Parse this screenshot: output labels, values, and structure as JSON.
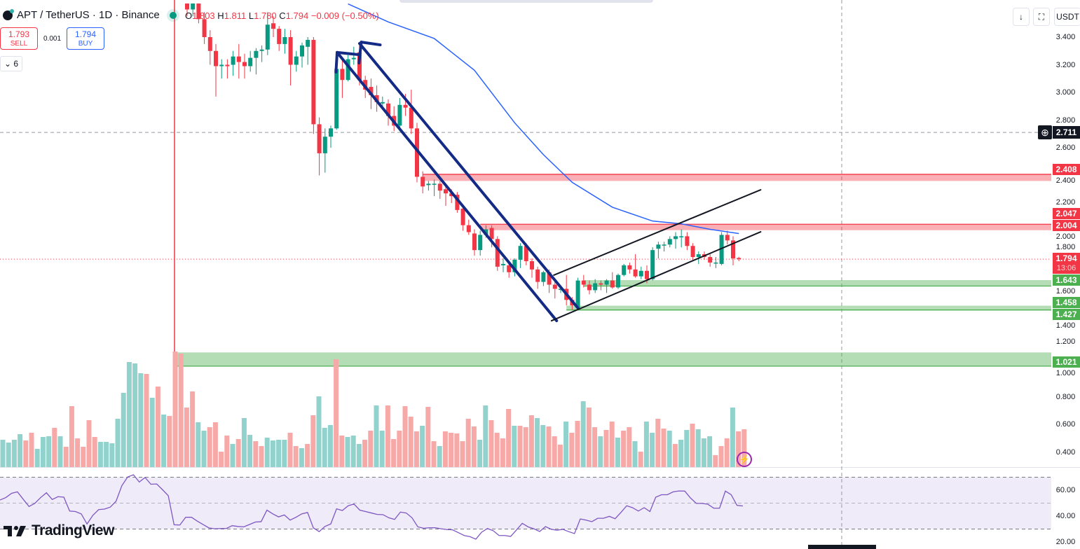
{
  "header": {
    "symbol": "APT",
    "title": "APT / TetherUS · 1D · Binance",
    "ohlc": {
      "o_label": "O",
      "o": "1.803",
      "h_label": "H",
      "h": "1.811",
      "l_label": "L",
      "l": "1.780",
      "c_label": "C",
      "c": "1.794",
      "change": "−0.009 (−0.50%)"
    }
  },
  "trade": {
    "sell_price": "1.793",
    "sell_label": "SELL",
    "spread": "0.001",
    "buy_price": "1.794",
    "buy_label": "BUY"
  },
  "indicators_toggle": {
    "icon": "chevron-down-icon",
    "count": "6"
  },
  "toolbar": {
    "arrow_icon": "arrow-down-icon",
    "fullscreen_icon": "fullscreen-icon",
    "currency": "USDT"
  },
  "brand": "TradingView",
  "colors": {
    "up": "#089981",
    "down": "#f23645",
    "up_vol": "#92d2cc",
    "down_vol": "#f7a9a7",
    "ma": "#2962ff",
    "rsi": "#7e57c2",
    "rsi_band": "#efebf8",
    "channel": "#132b84",
    "zone_red": "#f23645",
    "zone_green": "#4caf50"
  },
  "chart_data": [
    {
      "type": "candlestick",
      "pane": "price",
      "y_ticks": [
        "3.400",
        "3.200",
        "3.000",
        "2.800",
        "2.600",
        "2.400",
        "2.200",
        "2.000",
        "1.800",
        "1.600",
        "1.400",
        "1.200",
        "1.000",
        "0.800",
        "0.600",
        "0.400"
      ],
      "ylim": [
        0.3,
        3.65
      ],
      "candles_ohlc": [
        [
          3.7,
          3.75,
          3.55,
          3.6
        ],
        [
          3.6,
          3.7,
          3.55,
          3.65
        ],
        [
          3.65,
          3.7,
          3.5,
          3.53
        ],
        [
          3.53,
          3.58,
          3.35,
          3.4
        ],
        [
          3.4,
          3.45,
          3.2,
          3.3
        ],
        [
          3.3,
          3.35,
          2.97,
          3.19
        ],
        [
          3.19,
          3.24,
          3.1,
          3.2
        ],
        [
          3.2,
          3.24,
          3.1,
          3.19
        ],
        [
          3.2,
          3.3,
          3.12,
          3.26
        ],
        [
          3.26,
          3.35,
          3.1,
          3.22
        ],
        [
          3.22,
          3.28,
          3.1,
          3.19
        ],
        [
          3.19,
          3.3,
          3.15,
          3.25
        ],
        [
          3.25,
          3.32,
          3.13,
          3.3
        ],
        [
          3.3,
          3.34,
          3.22,
          3.31
        ],
        [
          3.31,
          3.58,
          3.27,
          3.49
        ],
        [
          3.5,
          3.55,
          3.4,
          3.46
        ],
        [
          3.46,
          3.48,
          3.3,
          3.35
        ],
        [
          3.35,
          3.46,
          3.28,
          3.4
        ],
        [
          3.4,
          3.45,
          3.05,
          3.2
        ],
        [
          3.2,
          3.3,
          3.15,
          3.26
        ],
        [
          3.26,
          3.36,
          3.18,
          3.34
        ],
        [
          3.33,
          3.4,
          3.2,
          3.38
        ],
        [
          3.38,
          3.4,
          2.7,
          2.77
        ],
        [
          2.77,
          2.82,
          2.4,
          2.56
        ],
        [
          2.56,
          2.74,
          2.42,
          2.68
        ],
        [
          2.68,
          2.76,
          2.6,
          2.74
        ],
        [
          2.74,
          3.2,
          2.73,
          3.17
        ],
        [
          3.17,
          3.25,
          2.96,
          3.09
        ],
        [
          3.09,
          3.27,
          3.08,
          3.24
        ],
        [
          3.24,
          3.33,
          3.2,
          3.25
        ],
        [
          3.29,
          3.34,
          3.05,
          3.09
        ],
        [
          3.09,
          3.12,
          2.96,
          3.02
        ],
        [
          3.04,
          3.1,
          2.88,
          2.98
        ],
        [
          2.98,
          3.05,
          2.86,
          2.93
        ],
        [
          2.92,
          2.97,
          2.88,
          2.93
        ],
        [
          2.92,
          2.95,
          2.76,
          2.83
        ],
        [
          2.83,
          2.9,
          2.72,
          2.76
        ],
        [
          2.76,
          2.96,
          2.72,
          2.91
        ],
        [
          2.91,
          2.99,
          2.83,
          2.89
        ],
        [
          2.89,
          3.02,
          2.7,
          2.74
        ],
        [
          2.74,
          2.78,
          2.35,
          2.39
        ],
        [
          2.39,
          2.43,
          2.27,
          2.32
        ],
        [
          2.33,
          2.36,
          2.29,
          2.34
        ],
        [
          2.34,
          2.37,
          2.25,
          2.34
        ],
        [
          2.34,
          2.36,
          2.23,
          2.29
        ],
        [
          2.3,
          2.33,
          2.18,
          2.27
        ],
        [
          2.27,
          2.3,
          2.2,
          2.25
        ],
        [
          2.26,
          2.28,
          2.13,
          2.15
        ],
        [
          2.16,
          2.18,
          2.0,
          2.04
        ],
        [
          2.04,
          2.08,
          1.97,
          1.99
        ],
        [
          1.98,
          2.01,
          1.82,
          1.86
        ],
        [
          1.86,
          2.0,
          1.82,
          1.97
        ],
        [
          1.97,
          2.04,
          1.95,
          2.01
        ],
        [
          2.02,
          2.04,
          1.88,
          1.94
        ],
        [
          1.94,
          1.96,
          1.71,
          1.74
        ],
        [
          1.75,
          1.8,
          1.7,
          1.76
        ],
        [
          1.75,
          1.78,
          1.66,
          1.7
        ],
        [
          1.7,
          1.8,
          1.67,
          1.79
        ],
        [
          1.79,
          1.91,
          1.73,
          1.89
        ],
        [
          1.89,
          1.91,
          1.75,
          1.78
        ],
        [
          1.78,
          1.8,
          1.66,
          1.72
        ],
        [
          1.72,
          1.74,
          1.58,
          1.63
        ],
        [
          1.63,
          1.71,
          1.6,
          1.7
        ],
        [
          1.7,
          1.72,
          1.55,
          1.61
        ],
        [
          1.61,
          1.64,
          1.51,
          1.58
        ],
        [
          1.58,
          1.6,
          1.55,
          1.58
        ],
        [
          1.58,
          1.68,
          1.46,
          1.5
        ],
        [
          1.5,
          1.52,
          1.43,
          1.46
        ],
        [
          1.44,
          1.66,
          1.43,
          1.64
        ],
        [
          1.64,
          1.68,
          1.59,
          1.61
        ],
        [
          1.61,
          1.64,
          1.54,
          1.57
        ],
        [
          1.57,
          1.65,
          1.55,
          1.62
        ],
        [
          1.62,
          1.64,
          1.57,
          1.61
        ],
        [
          1.61,
          1.65,
          1.55,
          1.64
        ],
        [
          1.64,
          1.7,
          1.58,
          1.59
        ],
        [
          1.59,
          1.69,
          1.58,
          1.68
        ],
        [
          1.68,
          1.76,
          1.67,
          1.75
        ],
        [
          1.75,
          1.77,
          1.69,
          1.72
        ],
        [
          1.72,
          1.83,
          1.66,
          1.67
        ],
        [
          1.67,
          1.74,
          1.65,
          1.71
        ],
        [
          1.71,
          1.75,
          1.62,
          1.65
        ],
        [
          1.65,
          1.88,
          1.64,
          1.86
        ],
        [
          1.87,
          1.92,
          1.8,
          1.9
        ],
        [
          1.9,
          1.92,
          1.85,
          1.9
        ],
        [
          1.9,
          1.96,
          1.88,
          1.94
        ],
        [
          1.94,
          1.99,
          1.87,
          1.96
        ],
        [
          1.96,
          2.01,
          1.88,
          1.96
        ],
        [
          1.96,
          1.99,
          1.86,
          1.89
        ],
        [
          1.89,
          1.91,
          1.79,
          1.81
        ],
        [
          1.81,
          1.85,
          1.76,
          1.83
        ],
        [
          1.83,
          1.85,
          1.79,
          1.81
        ],
        [
          1.81,
          1.83,
          1.74,
          1.77
        ],
        [
          1.77,
          1.81,
          1.73,
          1.77
        ],
        [
          1.76,
          1.99,
          1.75,
          1.97
        ],
        [
          1.97,
          2.0,
          1.9,
          1.93
        ],
        [
          1.93,
          1.96,
          1.75,
          1.8
        ],
        [
          1.803,
          1.811,
          1.78,
          1.794
        ]
      ],
      "moving_average": [
        [
          28,
          3.64
        ],
        [
          35,
          3.51
        ],
        [
          43,
          3.39
        ],
        [
          50,
          3.16
        ],
        [
          57,
          2.78
        ],
        [
          62,
          2.55
        ],
        [
          67,
          2.35
        ],
        [
          74,
          2.17
        ],
        [
          81,
          2.07
        ],
        [
          86,
          2.05
        ],
        [
          91,
          2.01
        ],
        [
          96,
          1.98
        ]
      ],
      "price_tags": [
        {
          "label": "2.711",
          "kind": "crosshair",
          "price": 2.711
        },
        {
          "label": "2.408",
          "kind": "red",
          "price": 2.408
        },
        {
          "label": "2.047",
          "kind": "red",
          "price": 2.047
        },
        {
          "label": "2.004",
          "kind": "red",
          "price": 2.004
        },
        {
          "label": "1.794",
          "kind": "red",
          "price": 1.794,
          "countdown": "13:06"
        },
        {
          "label": "1.643",
          "kind": "green",
          "price": 1.643
        },
        {
          "label": "1.458",
          "kind": "green",
          "price": 1.458
        },
        {
          "label": "1.427",
          "kind": "green",
          "price": 1.427
        },
        {
          "label": "1.021",
          "kind": "green",
          "price": 1.021
        }
      ],
      "zones": [
        {
          "kind": "red",
          "top": 2.408,
          "bottom": 2.36,
          "start_index": 41
        },
        {
          "kind": "red",
          "top": 2.047,
          "bottom": 2.004,
          "start_index": 51
        },
        {
          "kind": "green",
          "top": 1.643,
          "bottom": 1.6,
          "start_index": 69
        },
        {
          "kind": "green",
          "top": 1.458,
          "bottom": 1.427,
          "start_index": 66
        },
        {
          "kind": "green",
          "top": 1.12,
          "bottom": 1.021,
          "start_index": -2
        }
      ],
      "drawings": [
        {
          "name": "descending-channel-line-lower",
          "color": "#132b84",
          "from": [
            26.1,
            3.289
          ],
          "to": [
            64.3,
            1.349
          ]
        },
        {
          "name": "descending-channel-line-upper",
          "color": "#132b84",
          "from": [
            30.0,
            3.354
          ],
          "to": [
            68.0,
            1.441
          ]
        },
        {
          "name": "arrow-head-1a",
          "color": "#132b84",
          "from": [
            26.1,
            3.289
          ],
          "to": [
            29.7,
            3.274
          ]
        },
        {
          "name": "arrow-head-1b",
          "color": "#132b84",
          "from": [
            26.1,
            3.289
          ],
          "to": [
            25.9,
            3.147
          ]
        },
        {
          "name": "arrow-head-2a",
          "color": "#132b84",
          "from": [
            30.3,
            3.364
          ],
          "to": [
            33.6,
            3.344
          ]
        },
        {
          "name": "arrow-head-2b",
          "color": "#132b84",
          "from": [
            30.3,
            3.364
          ],
          "to": [
            29.9,
            3.213
          ]
        },
        {
          "name": "ascending-channel-line-lower",
          "color": "#131722",
          "from": [
            63.4,
            1.349
          ],
          "to": [
            99.8,
            1.992
          ]
        },
        {
          "name": "ascending-channel-line-upper",
          "color": "#131722",
          "from": [
            63.8,
            1.679
          ],
          "to": [
            99.8,
            2.296
          ]
        }
      ],
      "crosshair_price": 2.711,
      "last_price": 1.794
    },
    {
      "type": "bar",
      "pane": "volume",
      "relative_volume": [
        39,
        35,
        39,
        47,
        38,
        49,
        26,
        43,
        44,
        56,
        44,
        29,
        87,
        41,
        29,
        67,
        43,
        36,
        36,
        34,
        69,
        106,
        150,
        148,
        134,
        133,
        99,
        115,
        75,
        73,
        165,
        162,
        85,
        108,
        64,
        52,
        57,
        64,
        22,
        45,
        33,
        40,
        70,
        46,
        37,
        30,
        42,
        38,
        39,
        39,
        49,
        30,
        27,
        33,
        74,
        101,
        56,
        60,
        154,
        45,
        43,
        45,
        33,
        39,
        52,
        88,
        52,
        88,
        40,
        52,
        87,
        72,
        51,
        59,
        86,
        37,
        30,
        51,
        49,
        48,
        37,
        69,
        58,
        39,
        88,
        67,
        49,
        41,
        83,
        59,
        59,
        57,
        74,
        70,
        60,
        58,
        44,
        32,
        65,
        49,
        66,
        94,
        85,
        57,
        44,
        53,
        65,
        42,
        52,
        57,
        37,
        22,
        65,
        49,
        69,
        55,
        52,
        33,
        39,
        53,
        62,
        54,
        41,
        44,
        17,
        30,
        41,
        85,
        51,
        54
      ],
      "direction": "uuuudduuududddddduuuuuuuudududdddduudddduduudduuuuddudduuudduuudduudddddduddudddddduudddduddduuddduddudduddudduduudduduuduuudddudddudd"
    },
    {
      "type": "line",
      "pane": "rsi",
      "y_ticks": [
        "60.00",
        "40.00",
        "20.00"
      ],
      "bands": [
        70,
        50,
        30
      ],
      "values": [
        52.4,
        54.3,
        57.6,
        58.7,
        53,
        47.4,
        49.8,
        54.3,
        58,
        52.8,
        55,
        54.6,
        43.9,
        43.5,
        41.7,
        33.9,
        40.6,
        45,
        45.4,
        46.9,
        51.5,
        63.5,
        70.2,
        71.9,
        66.3,
        69.8,
        64.6,
        64.8,
        60.4,
        55.7,
        33.3,
        33.1,
        39.1,
        39.1,
        36.1,
        33.5,
        30.9,
        30.2,
        30.4,
        30.4,
        32.6,
        32,
        31.7,
        33.5,
        35.4,
        35.7,
        44.6,
        41.7,
        39.4,
        40.9,
        36.9,
        39.1,
        41.7,
        42.8,
        30.9,
        28,
        32,
        33.9,
        45.6,
        44.3,
        48,
        49.3,
        44.6,
        43.5,
        42.4,
        41.3,
        41.1,
        38.7,
        37.4,
        43.1,
        42.4,
        38.7,
        31.7,
        30.6,
        31,
        31,
        30.2,
        29.6,
        29.4,
        27.2,
        25,
        24.1,
        22.2,
        27.6,
        30.4,
        28.7,
        25,
        25,
        24.3,
        29.3,
        34.4,
        31.7,
        30.2,
        28.1,
        31.9,
        29.8,
        29.1,
        29.8,
        28,
        26.5,
        37.8,
        36.9,
        35.7,
        38.3,
        38.3,
        39.8,
        38,
        42.8,
        48,
        46.5,
        43.9,
        46.5,
        43.5,
        54.6,
        56.5,
        56.5,
        58.7,
        59.4,
        59.3,
        53.9,
        49.8,
        49.8,
        49.1,
        46.1,
        46.1,
        59.3,
        56.5,
        48.3,
        47.8
      ]
    }
  ]
}
